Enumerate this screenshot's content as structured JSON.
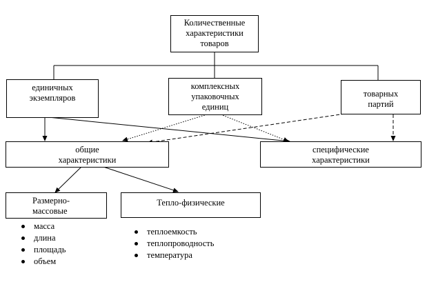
{
  "nodes": {
    "root": {
      "lines": [
        "Количественные",
        "характеристики",
        "товаров"
      ]
    },
    "single": {
      "lines": [
        "единичных",
        "экземпляров"
      ]
    },
    "complex": {
      "lines": [
        "комплексных",
        "упаковочных",
        "единиц"
      ]
    },
    "batch": {
      "lines": [
        "товарных",
        "партий"
      ]
    },
    "general": {
      "lines": [
        "общие",
        "характеристики"
      ]
    },
    "specific": {
      "lines": [
        "специфические",
        "характеристики"
      ]
    },
    "dimensional": {
      "lines": [
        "Размерно-",
        "массовые"
      ]
    },
    "thermal": {
      "lines": [
        "Тепло-физические"
      ]
    }
  },
  "lists": {
    "dimensional": [
      "масса",
      "длина",
      "площадь",
      "объем"
    ],
    "thermal": [
      "теплоемкость",
      "теплопроводность",
      "температура"
    ]
  }
}
